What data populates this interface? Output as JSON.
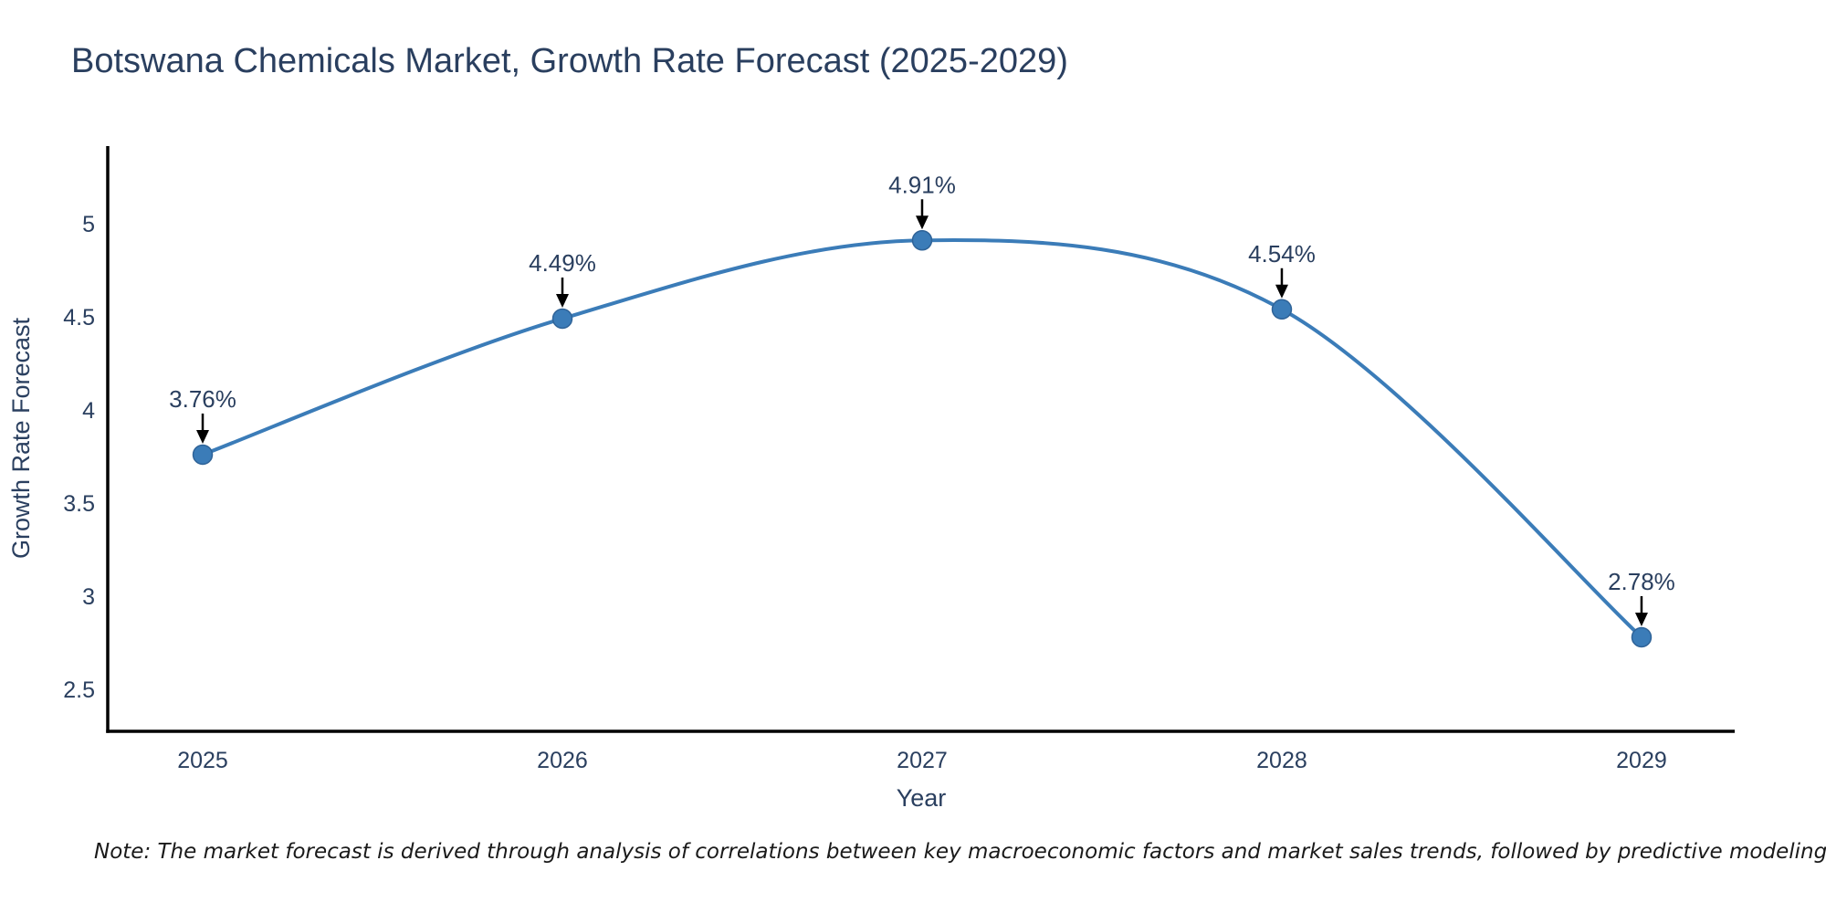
{
  "chart_data": {
    "type": "line",
    "title": "Botswana Chemicals Market, Growth Rate Forecast (2025-2029)",
    "xlabel": "Year",
    "ylabel": "Growth Rate Forecast",
    "categories": [
      "2025",
      "2026",
      "2027",
      "2028",
      "2029"
    ],
    "values": [
      3.76,
      4.49,
      4.91,
      4.54,
      2.78
    ],
    "point_labels": [
      "3.76%",
      "4.49%",
      "4.91%",
      "4.54%",
      "2.78%"
    ],
    "yticks": [
      2.5,
      3,
      3.5,
      4,
      4.5,
      5
    ],
    "ylim": [
      2.28,
      5.42
    ],
    "line_shape": "spline",
    "grid": false,
    "legend_position": "none",
    "colors": {
      "line": "#3b7cb8",
      "marker": "#3b7cb8",
      "marker_edge": "#2f6398",
      "text": "#2a3f5f",
      "axis": "#000000",
      "arrow": "#000000"
    }
  },
  "note": {
    "text": "Note: The market forecast is derived through analysis of correlations between key macroeconomic factors and market sales trends, followed by predictive modeling to project future sales."
  }
}
